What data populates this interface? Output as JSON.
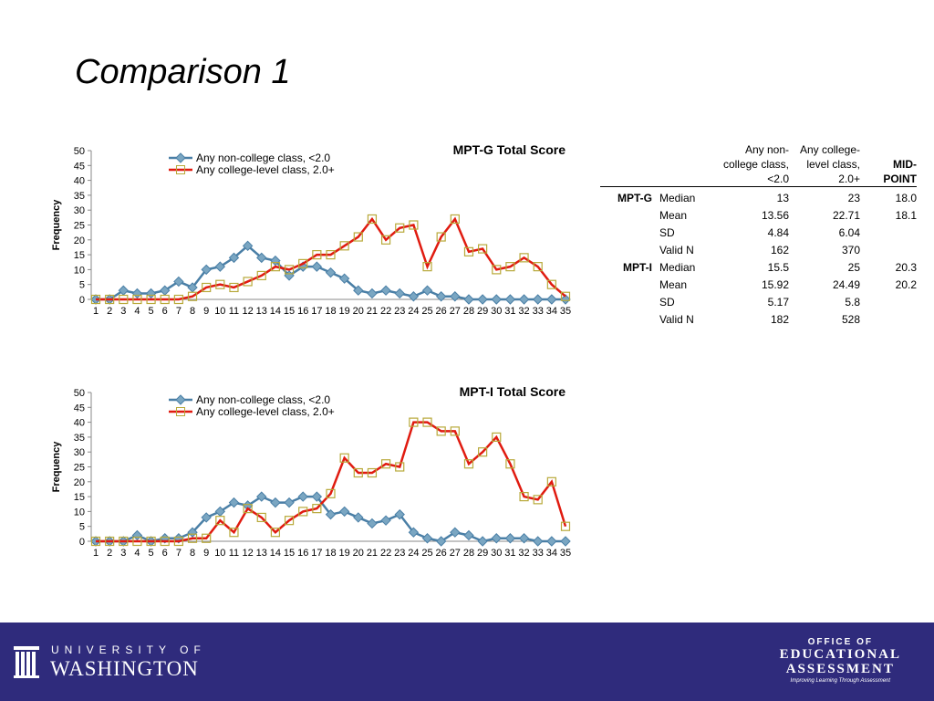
{
  "slide": {
    "title": "Comparison 1"
  },
  "chart_data": [
    {
      "type": "line",
      "title": "MPT-G Total Score",
      "xlabel": "",
      "ylabel": "Frequency",
      "ylim": [
        0,
        50
      ],
      "yticks": [
        0,
        5,
        10,
        15,
        20,
        25,
        30,
        35,
        40,
        45,
        50
      ],
      "x": [
        1,
        2,
        3,
        4,
        5,
        6,
        7,
        8,
        9,
        10,
        11,
        12,
        13,
        14,
        15,
        16,
        17,
        18,
        19,
        20,
        21,
        22,
        23,
        24,
        25,
        26,
        27,
        28,
        29,
        30,
        31,
        32,
        33,
        34,
        35
      ],
      "legend_position": "top-left",
      "grid": false,
      "series": [
        {
          "name": "Any non-college class, <2.0",
          "color": "#4a7fa6",
          "marker": "diamond",
          "values": [
            0,
            0,
            3,
            2,
            2,
            3,
            6,
            4,
            10,
            11,
            14,
            18,
            14,
            13,
            8,
            11,
            11,
            9,
            7,
            3,
            2,
            3,
            2,
            1,
            3,
            1,
            1,
            0,
            0,
            0,
            0,
            0,
            0,
            0,
            0
          ]
        },
        {
          "name": "Any college-level class, 2.0+",
          "color": "#e01b10",
          "marker": "square",
          "values": [
            0,
            0,
            0,
            0,
            0,
            0,
            0,
            1,
            4,
            5,
            4,
            6,
            8,
            11,
            10,
            12,
            15,
            15,
            18,
            21,
            27,
            20,
            24,
            25,
            11,
            21,
            27,
            16,
            17,
            10,
            11,
            14,
            11,
            5,
            1
          ]
        }
      ]
    },
    {
      "type": "line",
      "title": "MPT-I Total Score",
      "xlabel": "",
      "ylabel": "Frequency",
      "ylim": [
        0,
        50
      ],
      "yticks": [
        0,
        5,
        10,
        15,
        20,
        25,
        30,
        35,
        40,
        45,
        50
      ],
      "x": [
        1,
        2,
        3,
        4,
        5,
        6,
        7,
        8,
        9,
        10,
        11,
        12,
        13,
        14,
        15,
        16,
        17,
        18,
        19,
        20,
        21,
        22,
        23,
        24,
        25,
        26,
        27,
        28,
        29,
        30,
        31,
        32,
        33,
        34,
        35
      ],
      "legend_position": "top-left",
      "grid": false,
      "series": [
        {
          "name": "Any non-college class, <2.0",
          "color": "#4a7fa6",
          "marker": "diamond",
          "values": [
            0,
            0,
            0,
            2,
            0,
            1,
            1,
            3,
            8,
            10,
            13,
            12,
            15,
            13,
            13,
            15,
            15,
            9,
            10,
            8,
            6,
            7,
            9,
            3,
            1,
            0,
            3,
            2,
            0,
            1,
            1,
            1,
            0,
            0,
            0
          ]
        },
        {
          "name": "Any college-level class, 2.0+",
          "color": "#e01b10",
          "marker": "square",
          "values": [
            0,
            0,
            0,
            0,
            0,
            0,
            0,
            1,
            1,
            7,
            3,
            11,
            8,
            3,
            7,
            10,
            11,
            16,
            28,
            23,
            23,
            26,
            25,
            40,
            40,
            37,
            37,
            26,
            30,
            35,
            26,
            15,
            14,
            20,
            5
          ]
        }
      ]
    }
  ],
  "table": {
    "headers": [
      "Any non-college class, <2.0",
      "Any college-level class, 2.0+",
      "MID-POINT"
    ],
    "header_lines": [
      [
        "Any non-",
        "college class,",
        "<2.0"
      ],
      [
        "Any college-",
        "level class,",
        "2.0+"
      ],
      [
        "MID-",
        "POINT"
      ]
    ],
    "rows": [
      {
        "group": "MPT-G",
        "stat": "Median",
        "a": "13",
        "b": "23",
        "mid": "18.0"
      },
      {
        "group": "",
        "stat": "Mean",
        "a": "13.56",
        "b": "22.71",
        "mid": "18.1"
      },
      {
        "group": "",
        "stat": "SD",
        "a": "4.84",
        "b": "6.04",
        "mid": ""
      },
      {
        "group": "",
        "stat": "Valid N",
        "a": "162",
        "b": "370",
        "mid": ""
      },
      {
        "group": "MPT-I",
        "stat": "Median",
        "a": "15.5",
        "b": "25",
        "mid": "20.3"
      },
      {
        "group": "",
        "stat": "Mean",
        "a": "15.92",
        "b": "24.49",
        "mid": "20.2"
      },
      {
        "group": "",
        "stat": "SD",
        "a": "5.17",
        "b": "5.8",
        "mid": ""
      },
      {
        "group": "",
        "stat": "Valid N",
        "a": "182",
        "b": "528",
        "mid": ""
      }
    ]
  },
  "footer": {
    "uw_top": "UNIVERSITY OF",
    "uw_name": "WASHINGTON",
    "oea_top": "OFFICE OF",
    "oea_line1": "EDUCATIONAL",
    "oea_line2": "ASSESSMENT",
    "oea_tagline": "Improving Learning Through Assessment",
    "background": "#2f2b7c"
  }
}
